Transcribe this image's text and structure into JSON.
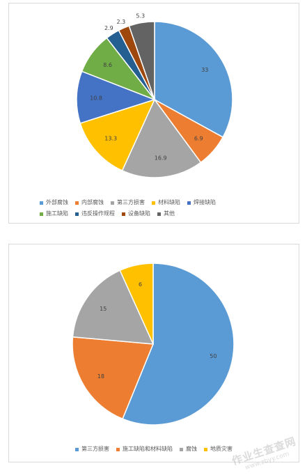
{
  "chart_data": [
    {
      "type": "pie",
      "title": "",
      "categories": [
        "外部腐蚀",
        "内部腐蚀",
        "第三方损害",
        "材料缺陷",
        "焊接缺陷",
        "施工缺陷",
        "违反操作规程",
        "设备缺陷",
        "其他"
      ],
      "values": [
        33,
        6.9,
        16.9,
        13.3,
        10.8,
        8.6,
        2.9,
        2.3,
        5.3
      ],
      "value_labels": [
        "33",
        "6.9",
        "16.9",
        "13.3",
        "10.8",
        "8.6",
        "2.9",
        "2.3",
        "5.3"
      ],
      "colors": [
        "#5b9bd5",
        "#ed7d31",
        "#a5a5a5",
        "#ffc000",
        "#4472c4",
        "#70ad47",
        "#255e91",
        "#9e480e",
        "#636363"
      ],
      "legend": "bottom"
    },
    {
      "type": "pie",
      "title": "",
      "categories": [
        "第三方损害",
        "施工缺陷和材料缺陷",
        "腐蚀",
        "地质灾害"
      ],
      "values": [
        50,
        18,
        15,
        6
      ],
      "value_labels": [
        "50",
        "18",
        "15",
        "6"
      ],
      "colors": [
        "#5b9bd5",
        "#ed7d31",
        "#a5a5a5",
        "#ffc000"
      ],
      "legend": "bottom"
    }
  ],
  "watermark": {
    "main": "作业生查查网",
    "sub": "www.zbyy.com"
  }
}
